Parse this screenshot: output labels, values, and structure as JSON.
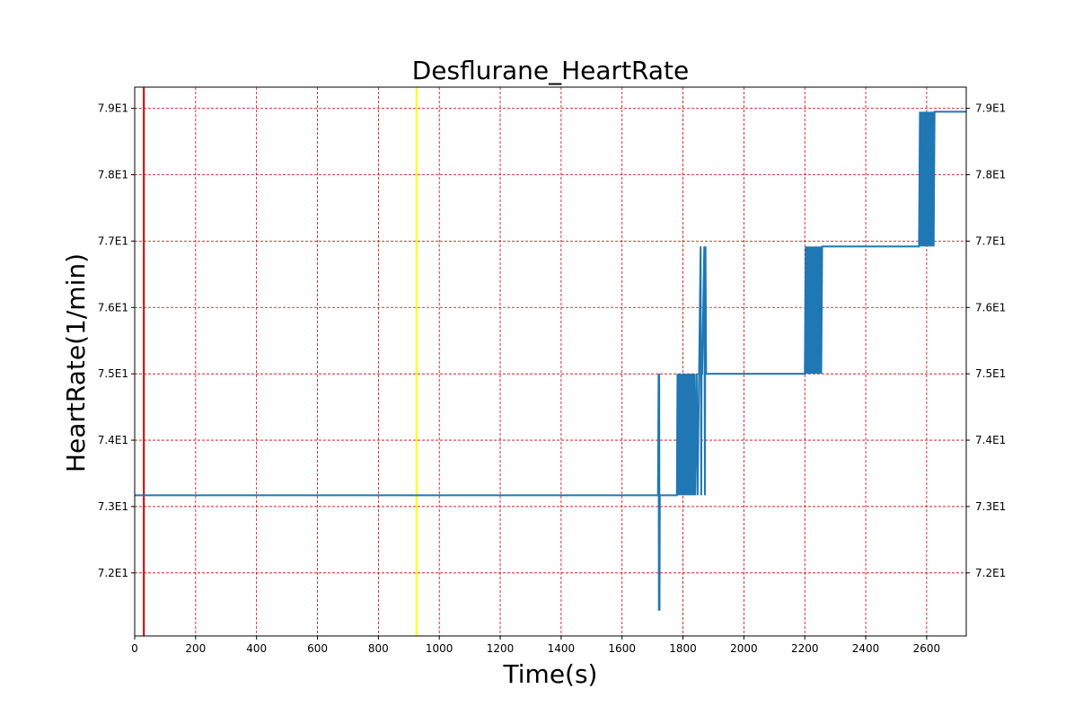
{
  "chart_data": {
    "type": "line",
    "title": "Desflurane_HeartRate",
    "xlabel": "Time(s)",
    "ylabel": "HeartRate(1/min)",
    "xlim": [
      0,
      2730
    ],
    "ylim": [
      71.05,
      79.32
    ],
    "x_ticks": [
      0,
      200,
      400,
      600,
      800,
      1000,
      1200,
      1400,
      1600,
      1800,
      2000,
      2200,
      2400,
      2600
    ],
    "x_tick_labels": [
      "0",
      "200",
      "400",
      "600",
      "800",
      "1000",
      "1200",
      "1400",
      "1600",
      "1800",
      "2000",
      "2200",
      "2400",
      "2600"
    ],
    "y_ticks": [
      72,
      73,
      74,
      75,
      76,
      77,
      78,
      79
    ],
    "y_tick_labels": [
      "7.2E1",
      "7.3E1",
      "7.4E1",
      "7.5E1",
      "7.6E1",
      "7.7E1",
      "7.8E1",
      "7.9E1"
    ],
    "grid": true,
    "grid_color": "#cc0000",
    "line_color": "#1f77b4",
    "vlines": [
      {
        "x": 30,
        "color": "#cc0000"
      },
      {
        "x": 925,
        "color": "#ffff00"
      }
    ],
    "series": [
      {
        "x": [
          0,
          1718,
          1720,
          1721,
          1722,
          1723,
          1724,
          1780,
          1782,
          1784,
          1786,
          1788,
          1790,
          1792,
          1794,
          1796,
          1798,
          1800,
          1802,
          1804,
          1806,
          1808,
          1810,
          1812,
          1814,
          1816,
          1818,
          1820,
          1822,
          1824,
          1826,
          1828,
          1830,
          1832,
          1834,
          1836,
          1838,
          1840,
          1845,
          1848,
          1858,
          1860,
          1861,
          1863,
          1870,
          1872,
          1874,
          1876,
          2200,
          2203,
          2206,
          2209,
          2212,
          2215,
          2218,
          2221,
          2224,
          2227,
          2230,
          2233,
          2236,
          2239,
          2242,
          2245,
          2248,
          2251,
          2254,
          2257,
          2260,
          2575,
          2578,
          2581,
          2584,
          2587,
          2590,
          2593,
          2596,
          2599,
          2602,
          2605,
          2608,
          2611,
          2614,
          2617,
          2620,
          2623,
          2626,
          2629,
          2730
        ],
        "y": [
          73.17,
          73.17,
          75.0,
          71.43,
          75.0,
          71.43,
          73.17,
          73.17,
          75.0,
          73.17,
          75.0,
          73.17,
          75.0,
          73.17,
          75.0,
          73.17,
          75.0,
          73.17,
          75.0,
          73.17,
          75.0,
          73.17,
          75.0,
          73.17,
          75.0,
          73.17,
          75.0,
          73.17,
          75.0,
          73.17,
          75.0,
          73.17,
          75.0,
          73.17,
          75.0,
          73.17,
          75.0,
          73.17,
          75.0,
          73.17,
          76.92,
          73.17,
          75.0,
          75.0,
          76.92,
          73.17,
          76.92,
          75.0,
          75.0,
          76.92,
          75.0,
          76.92,
          75.0,
          76.92,
          75.0,
          76.92,
          75.0,
          76.92,
          75.0,
          76.92,
          75.0,
          76.92,
          75.0,
          76.92,
          75.0,
          76.92,
          75.0,
          76.92,
          76.92,
          76.92,
          78.95,
          76.92,
          78.95,
          76.92,
          78.95,
          76.92,
          78.95,
          76.92,
          78.95,
          76.92,
          78.95,
          76.92,
          78.95,
          76.92,
          78.95,
          76.92,
          78.95,
          78.95,
          78.95
        ]
      }
    ]
  }
}
